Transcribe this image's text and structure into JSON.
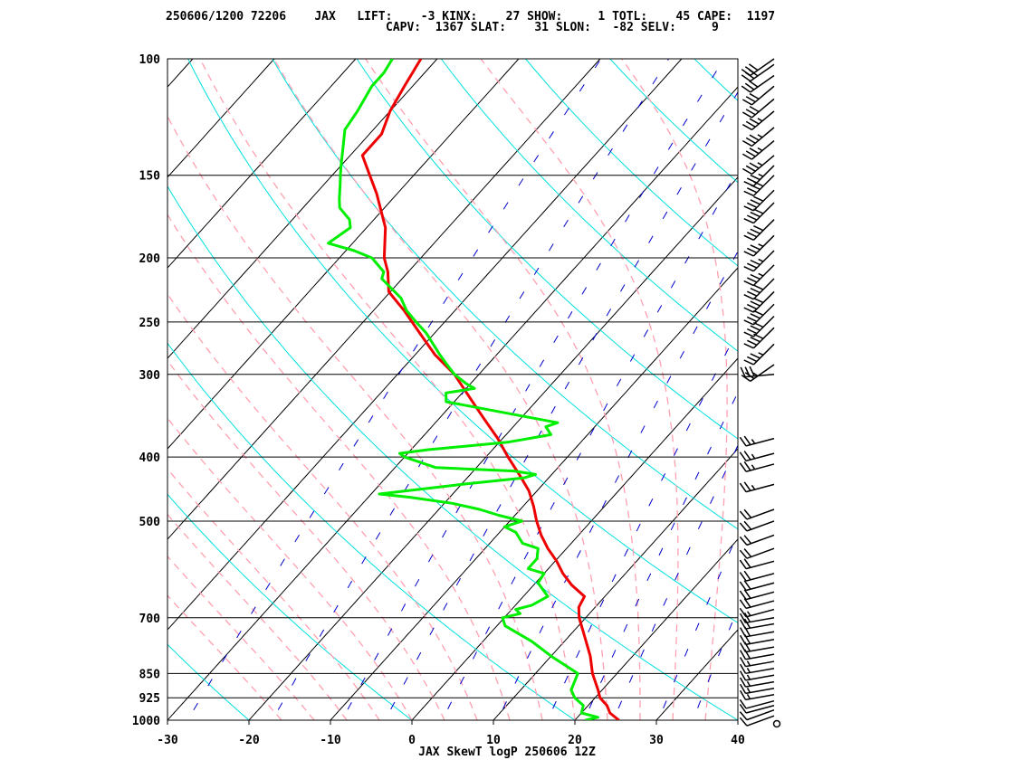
{
  "header": {
    "line1": "250606/1200 72206    JAX   LIFT:    -3 KINX:    27 SHOW:     1 TOTL:    45 CAPE:  1197",
    "line2": "CAPV:  1367 SLAT:    31 SLON:   -82 SELV:     9"
  },
  "chart_data": {
    "type": "line",
    "title": "",
    "xlabel": "JAX SkewT logP 250606 12Z",
    "ylabel": "",
    "x_axis": {
      "label": "",
      "min": -30,
      "max": 40,
      "ticks": [
        -30,
        -20,
        -10,
        0,
        10,
        20,
        30,
        40
      ]
    },
    "y_axis": {
      "scale": "log",
      "inverted": true,
      "min": 100,
      "max": 1000,
      "ticks": [
        100,
        150,
        200,
        250,
        300,
        400,
        500,
        700,
        850,
        925,
        1000
      ]
    },
    "grid": true,
    "colors": {
      "temperature": "#ee0000",
      "dewpoint": "#00ee00",
      "isotherms": "#000000",
      "isobars": "#000000",
      "dry_adiabats": "#00e0e0",
      "moist_adiabats": "#ffa0b0",
      "mixing_ratio": "#0000cc",
      "wind_barbs": "#000000"
    },
    "series": [
      {
        "name": "",
        "points": [
          [
            1000,
            25.4
          ],
          [
            975,
            23.5
          ],
          [
            950,
            22.3
          ],
          [
            925,
            20.6
          ],
          [
            900,
            19.5
          ],
          [
            850,
            17.0
          ],
          [
            800,
            14.8
          ],
          [
            750,
            12.1
          ],
          [
            700,
            9.2
          ],
          [
            675,
            8.0
          ],
          [
            650,
            7.5
          ],
          [
            625,
            4.7
          ],
          [
            600,
            2.3
          ],
          [
            575,
            0.2
          ],
          [
            550,
            -2.3
          ],
          [
            525,
            -4.6
          ],
          [
            500,
            -6.7
          ],
          [
            475,
            -8.7
          ],
          [
            450,
            -11.0
          ],
          [
            425,
            -14.0
          ],
          [
            400,
            -17.3
          ],
          [
            375,
            -20.6
          ],
          [
            350,
            -24.5
          ],
          [
            325,
            -28.6
          ],
          [
            300,
            -33.0
          ],
          [
            280,
            -37.6
          ],
          [
            260,
            -41.8
          ],
          [
            240,
            -46.3
          ],
          [
            225,
            -50.2
          ],
          [
            210,
            -52.5
          ],
          [
            200,
            -54.5
          ],
          [
            180,
            -57.7
          ],
          [
            160,
            -62.5
          ],
          [
            150,
            -65.4
          ],
          [
            140,
            -68.5
          ],
          [
            130,
            -68.5
          ],
          [
            120,
            -70.0
          ],
          [
            110,
            -71.0
          ],
          [
            100,
            -72.0
          ]
        ]
      },
      {
        "name": "",
        "points": [
          [
            1000,
            21.3
          ],
          [
            990,
            22.5
          ],
          [
            975,
            20.0
          ],
          [
            950,
            19.4
          ],
          [
            925,
            17.5
          ],
          [
            900,
            16.2
          ],
          [
            850,
            15.2
          ],
          [
            800,
            10.0
          ],
          [
            760,
            6.0
          ],
          [
            720,
            1.0
          ],
          [
            700,
            -0.2
          ],
          [
            690,
            1.5
          ],
          [
            680,
            0.5
          ],
          [
            670,
            2.0
          ],
          [
            650,
            3.0
          ],
          [
            620,
            0.3
          ],
          [
            600,
            0.0
          ],
          [
            590,
            -2.5
          ],
          [
            570,
            -2.5
          ],
          [
            550,
            -3.5
          ],
          [
            540,
            -6.0
          ],
          [
            520,
            -8.0
          ],
          [
            510,
            -10.0
          ],
          [
            500,
            -8.5
          ],
          [
            490,
            -12.0
          ],
          [
            480,
            -15.0
          ],
          [
            470,
            -19.0
          ],
          [
            460,
            -25.0
          ],
          [
            455,
            -29.0
          ],
          [
            440,
            -20.0
          ],
          [
            430,
            -13.0
          ],
          [
            425,
            -12.0
          ],
          [
            420,
            -15.0
          ],
          [
            415,
            -25.0
          ],
          [
            400,
            -30.0
          ],
          [
            395,
            -31.0
          ],
          [
            390,
            -28.0
          ],
          [
            380,
            -19.0
          ],
          [
            370,
            -14.5
          ],
          [
            360,
            -16.0
          ],
          [
            355,
            -15.0
          ],
          [
            330,
            -31.0
          ],
          [
            320,
            -32.0
          ],
          [
            315,
            -29.0
          ],
          [
            310,
            -30.5
          ],
          [
            300,
            -33.0
          ],
          [
            290,
            -35.0
          ],
          [
            280,
            -37.0
          ],
          [
            260,
            -41.0
          ],
          [
            250,
            -43.5
          ],
          [
            240,
            -46.0
          ],
          [
            230,
            -48.0
          ],
          [
            215,
            -52.5
          ],
          [
            210,
            -53.0
          ],
          [
            200,
            -56.0
          ],
          [
            195,
            -59.0
          ],
          [
            190,
            -63.0
          ],
          [
            180,
            -62.0
          ],
          [
            175,
            -63.0
          ],
          [
            168,
            -65.5
          ],
          [
            163,
            -66.5
          ],
          [
            155,
            -68.0
          ],
          [
            150,
            -69.0
          ],
          [
            145,
            -70.0
          ],
          [
            135,
            -72.0
          ],
          [
            128,
            -73.5
          ],
          [
            120,
            -74.0
          ],
          [
            110,
            -75.0
          ],
          [
            105,
            -75.0
          ],
          [
            100,
            -75.5
          ]
        ]
      }
    ],
    "wind_barbs": {
      "format": "[pressure_hPa, direction_deg, speed_kt]",
      "barbs": [
        [
          1000,
          0,
          0
        ],
        [
          985,
          250,
          10
        ],
        [
          965,
          250,
          10
        ],
        [
          950,
          255,
          10
        ],
        [
          935,
          255,
          10
        ],
        [
          915,
          260,
          15
        ],
        [
          895,
          260,
          15
        ],
        [
          875,
          260,
          15
        ],
        [
          855,
          260,
          15
        ],
        [
          835,
          260,
          15
        ],
        [
          815,
          260,
          15
        ],
        [
          795,
          260,
          20
        ],
        [
          775,
          260,
          20
        ],
        [
          755,
          260,
          20
        ],
        [
          735,
          260,
          20
        ],
        [
          715,
          260,
          20
        ],
        [
          700,
          260,
          20
        ],
        [
          680,
          255,
          15
        ],
        [
          660,
          255,
          20
        ],
        [
          640,
          255,
          20
        ],
        [
          620,
          255,
          20
        ],
        [
          600,
          255,
          20
        ],
        [
          575,
          255,
          20
        ],
        [
          550,
          250,
          20
        ],
        [
          525,
          250,
          20
        ],
        [
          500,
          250,
          20
        ],
        [
          480,
          250,
          20
        ],
        [
          440,
          255,
          25
        ],
        [
          410,
          255,
          25
        ],
        [
          395,
          255,
          25
        ],
        [
          375,
          255,
          25
        ],
        [
          300,
          265,
          30
        ],
        [
          290,
          235,
          25
        ],
        [
          270,
          225,
          35
        ],
        [
          255,
          225,
          40
        ],
        [
          245,
          225,
          40
        ],
        [
          235,
          225,
          40
        ],
        [
          225,
          225,
          40
        ],
        [
          215,
          225,
          40
        ],
        [
          205,
          225,
          35
        ],
        [
          195,
          225,
          35
        ],
        [
          185,
          225,
          35
        ],
        [
          175,
          225,
          40
        ],
        [
          165,
          225,
          40
        ],
        [
          158,
          225,
          40
        ],
        [
          150,
          225,
          40
        ],
        [
          145,
          225,
          35
        ],
        [
          140,
          230,
          35
        ],
        [
          133,
          230,
          35
        ],
        [
          127,
          230,
          35
        ],
        [
          120,
          230,
          35
        ],
        [
          115,
          230,
          30
        ],
        [
          110,
          230,
          30
        ],
        [
          106,
          235,
          30
        ],
        [
          102,
          235,
          30
        ],
        [
          100,
          235,
          30
        ]
      ]
    },
    "annotations": []
  }
}
